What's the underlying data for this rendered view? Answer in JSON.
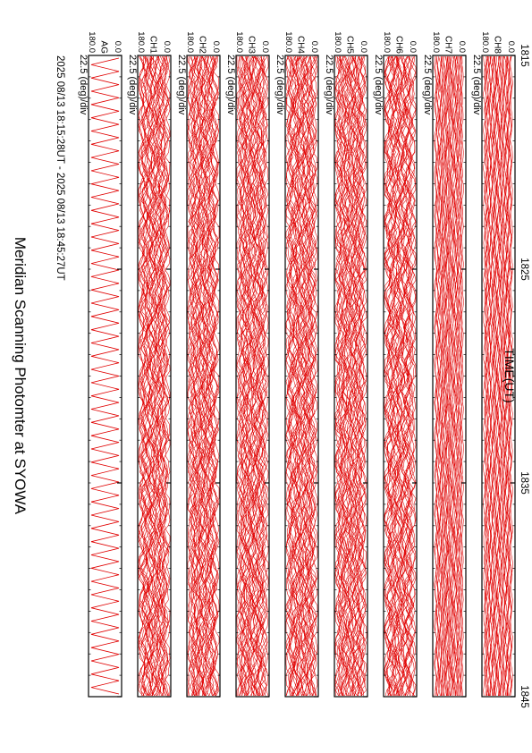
{
  "chart_data": {
    "type": "line",
    "title": "Meridian Scanning Photomter at SYOWA",
    "subtitle": "2025 08/13 18:15:28UT - 2025 08/13 18:45:27UT",
    "xlabel": "TIME(UT)",
    "time_ticks": [
      "1815",
      "1825",
      "1835",
      "1845"
    ],
    "scale_label": "22.5 (deg)/div",
    "y_max_label": "180.0",
    "y_min_label": "0.0",
    "line_color": "#e00000",
    "panels": [
      {
        "channel": "AG"
      },
      {
        "channel": "CH1"
      },
      {
        "channel": "CH2"
      },
      {
        "channel": "CH3"
      },
      {
        "channel": "CH4"
      },
      {
        "channel": "CH5"
      },
      {
        "channel": "CH6"
      },
      {
        "channel": "CH7"
      },
      {
        "channel": "CH8"
      }
    ]
  }
}
